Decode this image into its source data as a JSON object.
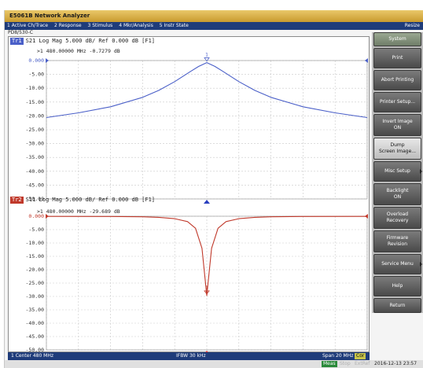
{
  "window": {
    "title": "E5061B Network Analyzer",
    "resize_label": "Resize"
  },
  "menu": [
    "1 Active Ch/Trace",
    "2 Response",
    "3 Stimulus",
    "4 Mkr/Analysis",
    "5 Instr State"
  ],
  "source_label": "PD8/530-C",
  "traces": [
    {
      "badge": "Tr1",
      "header": "S21 Log Mag 5.000 dB/ Ref 0.000 dB [F1]",
      "color": "#4a5fc8",
      "marker_no": "1",
      "marker_readout": ">1   480.00000 MHz -0.7279 dB",
      "ref_label": "0.000",
      "y_ticks": [
        "0.000",
        "-5.00",
        "-10.00",
        "-15.00",
        "-20.00",
        "-25.00",
        "-30.00",
        "-35.00",
        "-40.00",
        "-45.00",
        "-50.00"
      ]
    },
    {
      "badge": "Tr2",
      "header": "S11 Log Mag 5.000 dB/ Ref 0.000 dB [F1]",
      "color": "#c0392b",
      "marker_no": "1",
      "marker_readout": ">1   480.00000 MHz -29.689 dB",
      "ref_label": "0.000",
      "y_ticks": [
        "0.000",
        "-5.00",
        "-10.00",
        "-15.00",
        "-20.00",
        "-25.00",
        "-30.00",
        "-35.00",
        "-40.00",
        "-45.00",
        "-50.00"
      ]
    }
  ],
  "chart_data": [
    {
      "type": "line",
      "title": "Tr1 S21 Log Mag 5.000 dB/ Ref 0.000 dB [F1]",
      "xlabel": "",
      "ylabel": "",
      "ylim": [
        -50,
        0
      ],
      "xlim": [
        470,
        490
      ],
      "grid": true,
      "series": [
        {
          "x": [
            470,
            472,
            474,
            476,
            477,
            478,
            479,
            479.5,
            480,
            480.5,
            481,
            482,
            483,
            484,
            486,
            488,
            490
          ],
          "values": [
            -20.6,
            -18.9,
            -16.7,
            -13.3,
            -10.8,
            -7.6,
            -3.9,
            -2.1,
            -0.73,
            -2.1,
            -3.9,
            -7.6,
            -10.8,
            -13.3,
            -16.7,
            -18.9,
            -20.6
          ]
        }
      ],
      "marker": {
        "x": 480,
        "y": -0.7279
      }
    },
    {
      "type": "line",
      "title": "Tr2 S11 Log Mag 5.000 dB/ Ref 0.000 dB [F1]",
      "xlabel": "",
      "ylabel": "",
      "ylim": [
        -50,
        0
      ],
      "xlim": [
        470,
        490
      ],
      "grid": true,
      "series": [
        {
          "x": [
            470,
            474,
            476,
            477,
            478,
            478.8,
            479.3,
            479.7,
            480,
            480.3,
            480.7,
            481.2,
            482,
            483,
            484,
            486,
            490
          ],
          "values": [
            -0.05,
            -0.1,
            -0.2,
            -0.4,
            -0.9,
            -2.0,
            -4.5,
            -12.0,
            -29.689,
            -12.0,
            -4.5,
            -2.0,
            -0.9,
            -0.4,
            -0.2,
            -0.1,
            -0.05
          ]
        }
      ],
      "marker": {
        "x": 480,
        "y": -29.689
      }
    }
  ],
  "status": {
    "center": "1  Center  480 MHz",
    "ifbw": "IFBW 30 kHz",
    "span": "Span 20 MHz",
    "cor": "Cor"
  },
  "bottom": {
    "meas": "Meas",
    "stop": "Stop",
    "extref": "ExtRef",
    "datetime": "2016-12-13 23:57"
  },
  "softkeys": [
    {
      "label": "System",
      "value": ""
    },
    {
      "label": "Print",
      "value": ""
    },
    {
      "label": "Abort Printing",
      "value": ""
    },
    {
      "label": "Printer Setup...",
      "value": ""
    },
    {
      "label": "Invert Image",
      "value": "ON"
    },
    {
      "label": "Dump",
      "value": "Screen Image..."
    },
    {
      "label": "Misc Setup",
      "value": ""
    },
    {
      "label": "Backlight",
      "value": "ON"
    },
    {
      "label": "Overload",
      "value": "Recovery"
    },
    {
      "label": "Firmware",
      "value": "Revision"
    },
    {
      "label": "Service Menu",
      "value": ""
    },
    {
      "label": "Help",
      "value": ""
    },
    {
      "label": "Return",
      "value": ""
    }
  ]
}
